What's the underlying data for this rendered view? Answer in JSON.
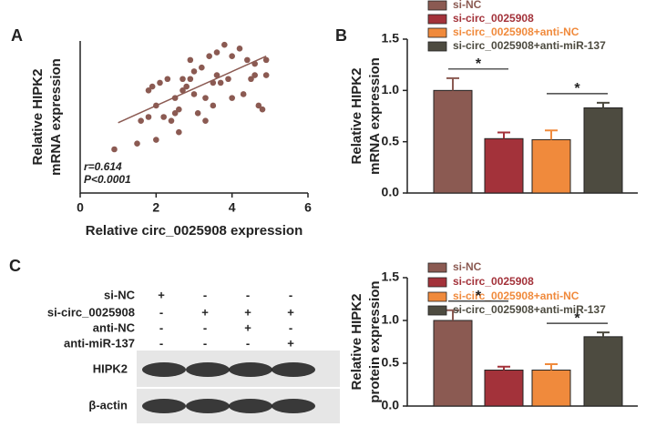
{
  "panel_labels": [
    "A",
    "B",
    "C"
  ],
  "chart_data": [
    {
      "type": "scatter",
      "xlabel": "Relative circ_0025908 expression",
      "ylabel": [
        "Relative HIPK2",
        "mRNA expression"
      ],
      "annotations": [
        "r=0.614",
        "P<0.0001"
      ],
      "color": "#8b5a52",
      "xlim": [
        0,
        6
      ],
      "xticks": [
        0,
        2,
        4,
        6
      ],
      "ylim": [
        0,
        4
      ],
      "x": [
        0.9,
        1.5,
        1.6,
        1.8,
        1.8,
        1.9,
        2.0,
        2.0,
        2.1,
        2.2,
        2.3,
        2.4,
        2.5,
        2.5,
        2.6,
        2.6,
        2.7,
        2.7,
        2.8,
        2.9,
        2.9,
        3.0,
        3.0,
        3.1,
        3.2,
        3.3,
        3.3,
        3.4,
        3.5,
        3.5,
        3.6,
        3.6,
        3.7,
        3.8,
        3.9,
        4.0,
        4.0,
        4.2,
        4.3,
        4.4,
        4.5,
        4.6,
        4.6,
        4.7,
        4.8,
        4.9,
        4.9
      ],
      "values": [
        1.15,
        1.3,
        1.9,
        2.0,
        2.7,
        2.8,
        1.4,
        2.3,
        2.9,
        2.0,
        3.0,
        1.9,
        2.5,
        2.1,
        2.2,
        1.6,
        3.0,
        2.7,
        2.8,
        3.0,
        3.5,
        3.2,
        2.6,
        2.1,
        3.3,
        1.9,
        2.5,
        3.6,
        2.9,
        2.3,
        3.7,
        3.1,
        2.9,
        3.9,
        3.0,
        3.6,
        2.5,
        3.8,
        2.6,
        3.5,
        3.0,
        3.4,
        3.1,
        2.3,
        2.2,
        3.5,
        3.1
      ],
      "trend_line": {
        "x": [
          1,
          4.9
        ],
        "y": [
          1.85,
          3.6
        ]
      }
    },
    {
      "type": "bar",
      "ylabel": [
        "Relative HIPK2",
        "mRNA expression"
      ],
      "categories": [
        "si-NC",
        "si-circ_0025908",
        "si-circ_0025908+anti-NC",
        "si-circ_0025908+anti-miR-137"
      ],
      "colors": [
        "#8b5a52",
        "#a3323a",
        "#f08a3c",
        "#4d4b40"
      ],
      "values": [
        1.0,
        0.53,
        0.52,
        0.83
      ],
      "errors": [
        0.12,
        0.06,
        0.09,
        0.05
      ],
      "significance": [
        "*",
        "*"
      ],
      "ylim": [
        0,
        1.5
      ],
      "yticks": [
        {
          "value": 0,
          "label": "0.0"
        },
        {
          "value": 0.5,
          "label": "0.5"
        },
        {
          "value": 1,
          "label": "1.0"
        },
        {
          "value": 1.5,
          "label": "1.5"
        }
      ]
    },
    {
      "type": "bar",
      "ylabel": [
        "Relative HIPK2",
        "protein expression"
      ],
      "categories": [
        "si-NC",
        "si-circ_0025908",
        "si-circ_0025908+anti-NC",
        "si-circ_0025908+anti-miR-137"
      ],
      "colors": [
        "#8b5a52",
        "#a3323a",
        "#f08a3c",
        "#4d4b40"
      ],
      "values": [
        1.0,
        0.42,
        0.42,
        0.81
      ],
      "errors": [
        0.12,
        0.04,
        0.07,
        0.05
      ],
      "significance": [
        "*",
        "*"
      ],
      "ylim": [
        0,
        1.5
      ],
      "yticks": [
        {
          "value": 0,
          "label": "0.0"
        },
        {
          "value": 0.5,
          "label": "0.5"
        },
        {
          "value": 1,
          "label": "1.0"
        },
        {
          "value": 1.5,
          "label": "1.5"
        }
      ]
    }
  ],
  "blot": {
    "conditions": [
      "si-NC",
      "si-circ_0025908",
      "anti-NC",
      "anti-miR-137"
    ],
    "signs": [
      [
        "+",
        "-",
        "-",
        "-"
      ],
      [
        "-",
        "+",
        "+",
        "+"
      ],
      [
        "-",
        "-",
        "+",
        "-"
      ],
      [
        "-",
        "-",
        "-",
        "+"
      ]
    ],
    "bands": [
      "HIPK2",
      "β-actin"
    ]
  }
}
